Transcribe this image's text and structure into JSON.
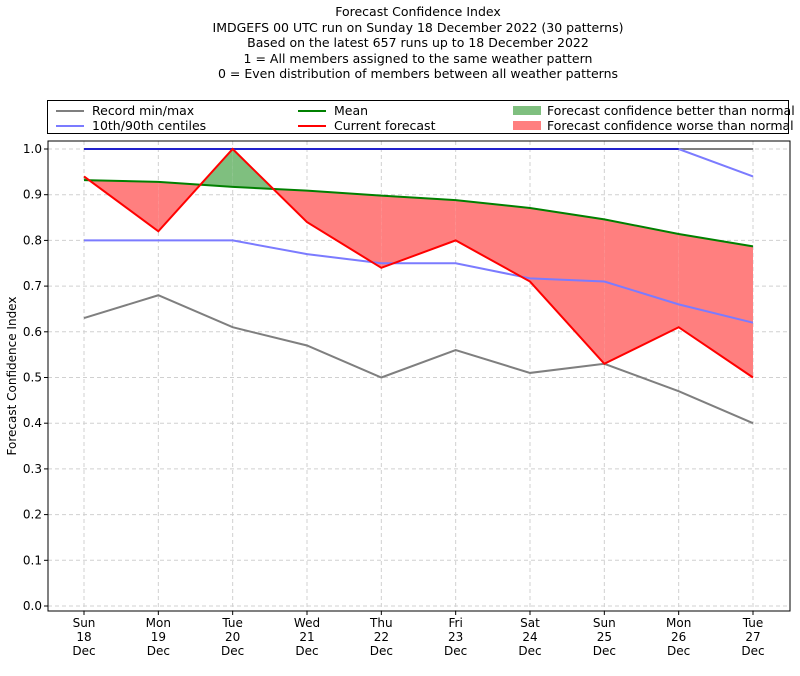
{
  "title_lines": [
    "Forecast Confidence Index",
    "IMDGEFS 00 UTC run on Sunday 18 December 2022 (30 patterns)",
    "Based on the latest 657 runs up to 18 December 2022",
    "1 = All members assigned to the same weather pattern",
    "0 = Even distribution of members between all weather patterns"
  ],
  "legend": {
    "record": "Record min/max",
    "centiles": "10th/90th centiles",
    "mean": "Mean",
    "current": "Current forecast",
    "better": "Forecast confidence better than normal",
    "worse": "Forecast confidence worse than normal"
  },
  "colors": {
    "record": "#7f7f7f",
    "centiles": "#7b7bff",
    "centile_max_overlap": "#2222cc",
    "mean": "#008000",
    "current": "#ff0000",
    "better": "#7fbf7f",
    "worse": "#ff7f7f",
    "grid": "#d0d0d0"
  },
  "chart_data": {
    "type": "line",
    "title": "Forecast Confidence Index",
    "xlabel": "",
    "ylabel": "Forecast Confidence Index",
    "ylim": [
      0.0,
      1.0
    ],
    "yticks": [
      "0.0",
      "0.1",
      "0.2",
      "0.3",
      "0.4",
      "0.5",
      "0.6",
      "0.7",
      "0.8",
      "0.9",
      "1.0"
    ],
    "grid": true,
    "legend_position": "top (above plot)",
    "categories": [
      [
        "Sun",
        "18",
        "Dec"
      ],
      [
        "Mon",
        "19",
        "Dec"
      ],
      [
        "Tue",
        "20",
        "Dec"
      ],
      [
        "Wed",
        "21",
        "Dec"
      ],
      [
        "Thu",
        "22",
        "Dec"
      ],
      [
        "Fri",
        "23",
        "Dec"
      ],
      [
        "Sat",
        "24",
        "Dec"
      ],
      [
        "Sun",
        "25",
        "Dec"
      ],
      [
        "Mon",
        "26",
        "Dec"
      ],
      [
        "Tue",
        "27",
        "Dec"
      ]
    ],
    "series": [
      {
        "name": "Record max",
        "key": "record",
        "values": [
          1.0,
          1.0,
          1.0,
          1.0,
          1.0,
          1.0,
          1.0,
          1.0,
          1.0,
          1.0
        ]
      },
      {
        "name": "Record min",
        "key": "record",
        "values": [
          0.63,
          0.68,
          0.61,
          0.57,
          0.5,
          0.56,
          0.51,
          0.53,
          0.47,
          0.4
        ]
      },
      {
        "name": "90th centile",
        "key": "centiles",
        "values": [
          1.0,
          1.0,
          1.0,
          1.0,
          1.0,
          1.0,
          1.0,
          1.0,
          1.0,
          0.94
        ]
      },
      {
        "name": "10th centile",
        "key": "centiles",
        "values": [
          0.8,
          0.8,
          0.8,
          0.77,
          0.75,
          0.75,
          0.717,
          0.71,
          0.66,
          0.62
        ]
      },
      {
        "name": "Mean",
        "key": "mean",
        "values": [
          0.932,
          0.928,
          0.917,
          0.909,
          0.898,
          0.888,
          0.871,
          0.846,
          0.814,
          0.787
        ]
      },
      {
        "name": "Current forecast",
        "key": "current",
        "values": [
          0.94,
          0.82,
          1.0,
          0.84,
          0.74,
          0.8,
          0.71,
          0.53,
          0.61,
          0.5
        ]
      }
    ]
  }
}
